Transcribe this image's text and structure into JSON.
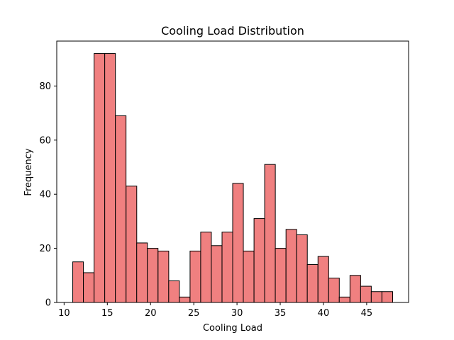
{
  "chart_data": {
    "type": "bar",
    "title": "Cooling Load Distribution",
    "xlabel": "Cooling Load",
    "ylabel": "Frequency",
    "xlim": [
      9.15,
      49.85
    ],
    "ylim": [
      0,
      96.6
    ],
    "x_ticks": [
      10,
      15,
      20,
      25,
      30,
      35,
      40,
      45
    ],
    "y_ticks": [
      0,
      20,
      40,
      60,
      80
    ],
    "bin_width": 1.233,
    "bins": [
      {
        "start": 11.0,
        "value": 15
      },
      {
        "start": 12.23,
        "value": 11
      },
      {
        "start": 13.47,
        "value": 92
      },
      {
        "start": 14.7,
        "value": 92
      },
      {
        "start": 15.93,
        "value": 69
      },
      {
        "start": 17.17,
        "value": 43
      },
      {
        "start": 18.4,
        "value": 22
      },
      {
        "start": 19.63,
        "value": 20
      },
      {
        "start": 20.87,
        "value": 19
      },
      {
        "start": 22.1,
        "value": 8
      },
      {
        "start": 23.33,
        "value": 2
      },
      {
        "start": 24.57,
        "value": 19
      },
      {
        "start": 25.8,
        "value": 26
      },
      {
        "start": 27.03,
        "value": 21
      },
      {
        "start": 28.27,
        "value": 26
      },
      {
        "start": 29.5,
        "value": 44
      },
      {
        "start": 30.73,
        "value": 19
      },
      {
        "start": 31.97,
        "value": 31
      },
      {
        "start": 33.2,
        "value": 51
      },
      {
        "start": 34.43,
        "value": 20
      },
      {
        "start": 35.67,
        "value": 27
      },
      {
        "start": 36.9,
        "value": 25
      },
      {
        "start": 38.13,
        "value": 14
      },
      {
        "start": 39.37,
        "value": 17
      },
      {
        "start": 40.6,
        "value": 9
      },
      {
        "start": 41.83,
        "value": 2
      },
      {
        "start": 43.07,
        "value": 10
      },
      {
        "start": 44.3,
        "value": 6
      },
      {
        "start": 45.53,
        "value": 4
      },
      {
        "start": 46.77,
        "value": 4
      }
    ],
    "colors": {
      "bar_fill": "#f08080",
      "bar_edge": "#000000"
    },
    "grid": false,
    "legend": "none"
  }
}
